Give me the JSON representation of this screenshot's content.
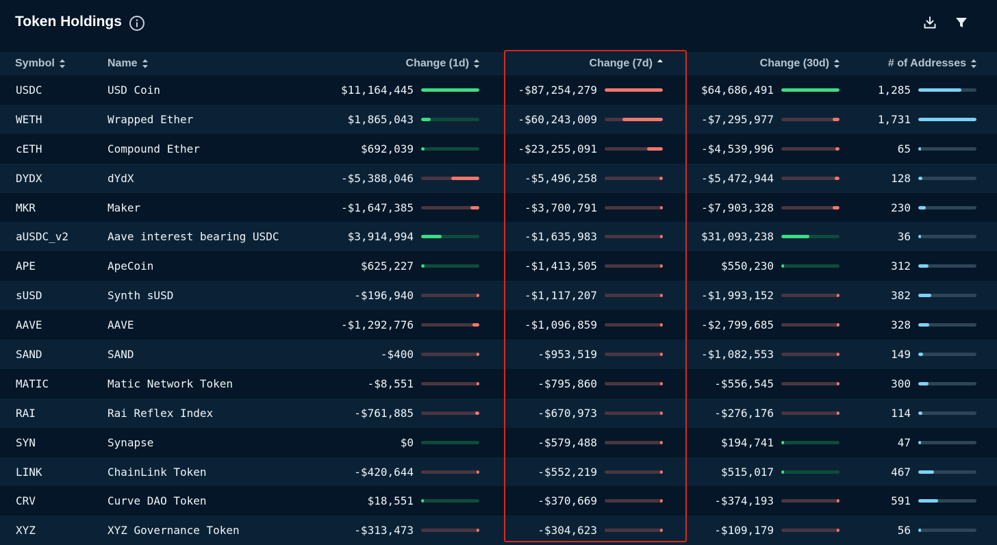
{
  "header": {
    "title": "Token Holdings"
  },
  "columns": {
    "symbol": "Symbol",
    "name": "Name",
    "change_1d": "Change (1d)",
    "change_7d": "Change (7d)",
    "change_30d": "Change (30d)",
    "addresses": "# of Addresses"
  },
  "sort": {
    "column": "change_7d",
    "direction": "asc"
  },
  "colors": {
    "positive": "#3ddc84",
    "positive_track": "#0f4a3a",
    "negative": "#f2766d",
    "negative_track": "#4a3540",
    "addresses": "#7cd2f5",
    "addresses_track": "#2d4557",
    "highlight": "#d92a1c"
  },
  "rows": [
    {
      "symbol": "USDC",
      "name": "USD Coin",
      "d1": "$11,164,445",
      "d1v": 11164445,
      "d7": "-$87,254,279",
      "d7v": -87254279,
      "d30": "$64,686,491",
      "d30v": 64686491,
      "addr": "1,285",
      "addrv": 1285
    },
    {
      "symbol": "WETH",
      "name": "Wrapped Ether",
      "d1": "$1,865,043",
      "d1v": 1865043,
      "d7": "-$60,243,009",
      "d7v": -60243009,
      "d30": "-$7,295,977",
      "d30v": -7295977,
      "addr": "1,731",
      "addrv": 1731
    },
    {
      "symbol": "cETH",
      "name": "Compound Ether",
      "d1": "$692,039",
      "d1v": 692039,
      "d7": "-$23,255,091",
      "d7v": -23255091,
      "d30": "-$4,539,996",
      "d30v": -4539996,
      "addr": "65",
      "addrv": 65
    },
    {
      "symbol": "DYDX",
      "name": "dYdX",
      "d1": "-$5,388,046",
      "d1v": -5388046,
      "d7": "-$5,496,258",
      "d7v": -5496258,
      "d30": "-$5,472,944",
      "d30v": -5472944,
      "addr": "128",
      "addrv": 128
    },
    {
      "symbol": "MKR",
      "name": "Maker",
      "d1": "-$1,647,385",
      "d1v": -1647385,
      "d7": "-$3,700,791",
      "d7v": -3700791,
      "d30": "-$7,903,328",
      "d30v": -7903328,
      "addr": "230",
      "addrv": 230
    },
    {
      "symbol": "aUSDC_v2",
      "name": "Aave interest bearing USDC",
      "d1": "$3,914,994",
      "d1v": 3914994,
      "d7": "-$1,635,983",
      "d7v": -1635983,
      "d30": "$31,093,238",
      "d30v": 31093238,
      "addr": "36",
      "addrv": 36
    },
    {
      "symbol": "APE",
      "name": "ApeCoin",
      "d1": "$625,227",
      "d1v": 625227,
      "d7": "-$1,413,505",
      "d7v": -1413505,
      "d30": "$550,230",
      "d30v": 550230,
      "addr": "312",
      "addrv": 312
    },
    {
      "symbol": "sUSD",
      "name": "Synth sUSD",
      "d1": "-$196,940",
      "d1v": -196940,
      "d7": "-$1,117,207",
      "d7v": -1117207,
      "d30": "-$1,993,152",
      "d30v": -1993152,
      "addr": "382",
      "addrv": 382
    },
    {
      "symbol": "AAVE",
      "name": "AAVE",
      "d1": "-$1,292,776",
      "d1v": -1292776,
      "d7": "-$1,096,859",
      "d7v": -1096859,
      "d30": "-$2,799,685",
      "d30v": -2799685,
      "addr": "328",
      "addrv": 328
    },
    {
      "symbol": "SAND",
      "name": "SAND",
      "d1": "-$400",
      "d1v": -400,
      "d7": "-$953,519",
      "d7v": -953519,
      "d30": "-$1,082,553",
      "d30v": -1082553,
      "addr": "149",
      "addrv": 149
    },
    {
      "symbol": "MATIC",
      "name": "Matic Network Token",
      "d1": "-$8,551",
      "d1v": -8551,
      "d7": "-$795,860",
      "d7v": -795860,
      "d30": "-$556,545",
      "d30v": -556545,
      "addr": "300",
      "addrv": 300
    },
    {
      "symbol": "RAI",
      "name": "Rai Reflex Index",
      "d1": "-$761,885",
      "d1v": -761885,
      "d7": "-$670,973",
      "d7v": -670973,
      "d30": "-$276,176",
      "d30v": -276176,
      "addr": "114",
      "addrv": 114
    },
    {
      "symbol": "SYN",
      "name": "Synapse",
      "d1": "$0",
      "d1v": 0,
      "d7": "-$579,488",
      "d7v": -579488,
      "d30": "$194,741",
      "d30v": 194741,
      "addr": "47",
      "addrv": 47
    },
    {
      "symbol": "LINK",
      "name": "ChainLink Token",
      "d1": "-$420,644",
      "d1v": -420644,
      "d7": "-$552,219",
      "d7v": -552219,
      "d30": "$515,017",
      "d30v": 515017,
      "addr": "467",
      "addrv": 467
    },
    {
      "symbol": "CRV",
      "name": "Curve DAO Token",
      "d1": "$18,551",
      "d1v": 18551,
      "d7": "-$370,669",
      "d7v": -370669,
      "d30": "-$374,193",
      "d30v": -374193,
      "addr": "591",
      "addrv": 591
    },
    {
      "symbol": "XYZ",
      "name": "XYZ Governance Token",
      "d1": "-$313,473",
      "d1v": -313473,
      "d7": "-$304,623",
      "d7v": -304623,
      "d30": "-$109,179",
      "d30v": -109179,
      "addr": "56",
      "addrv": 56
    }
  ]
}
